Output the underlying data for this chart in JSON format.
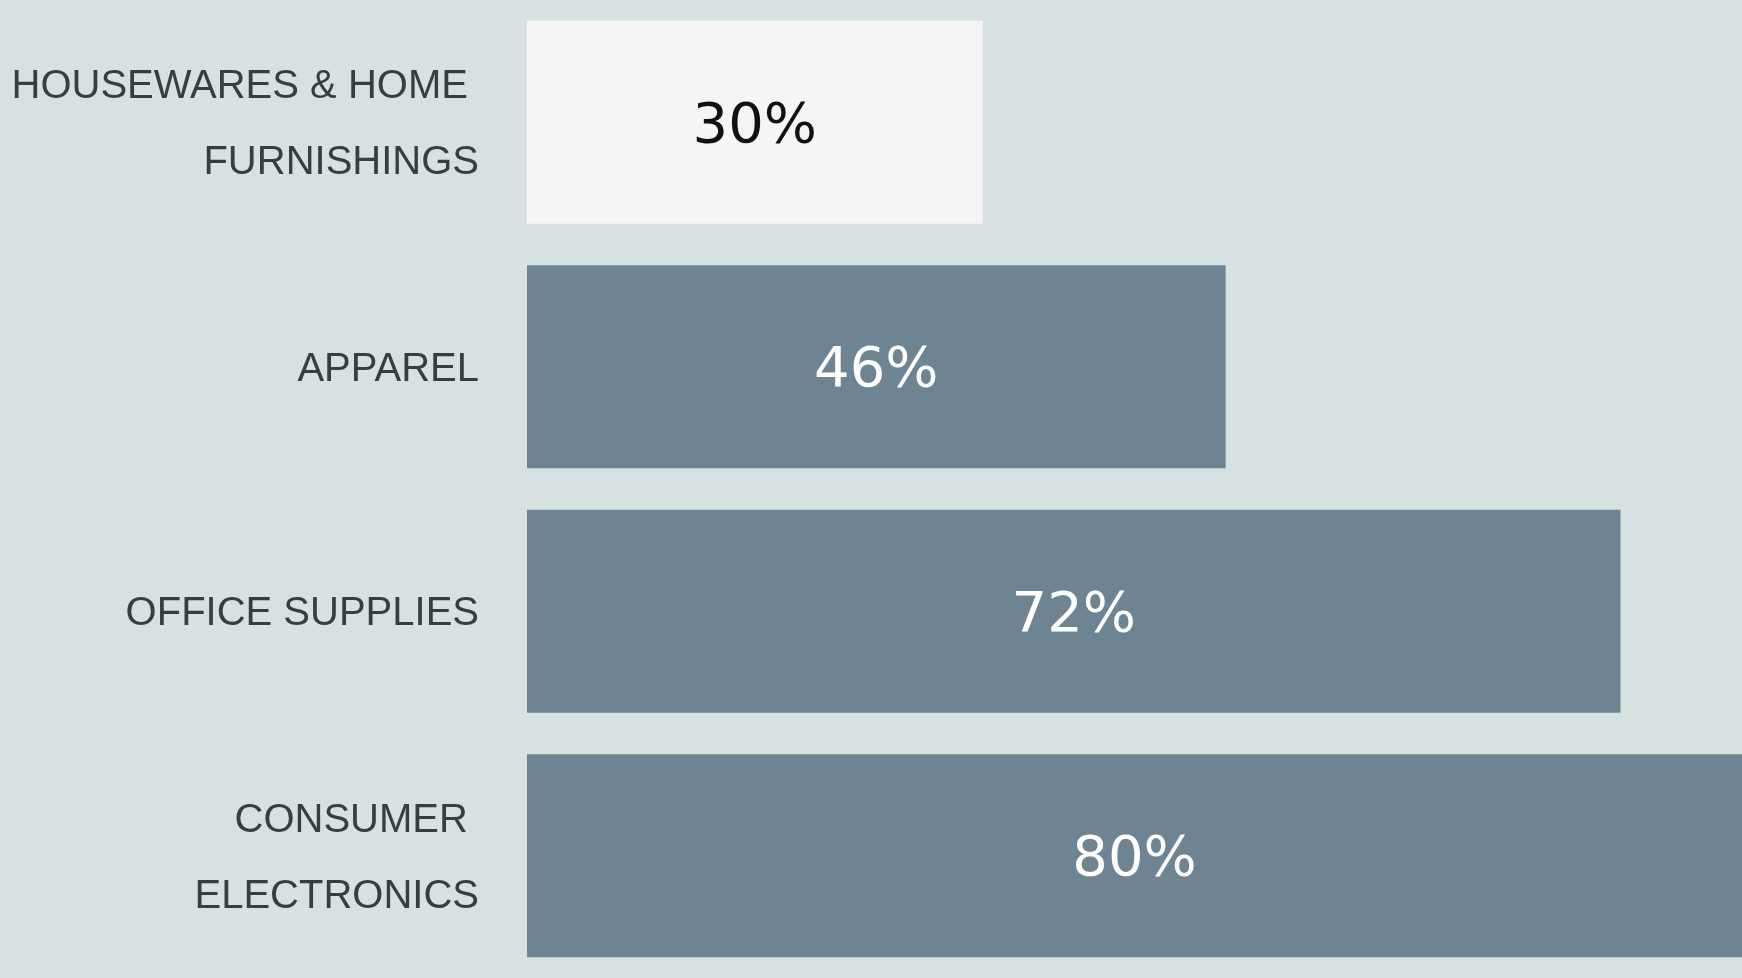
{
  "chart_data": {
    "type": "bar",
    "orientation": "horizontal",
    "categories": [
      "HOUSEWARES & HOME FURNISHINGS",
      "APPAREL",
      "OFFICE SUPPLIES",
      "CONSUMER ELECTRONICS"
    ],
    "values": [
      30,
      46,
      72,
      80
    ],
    "value_labels": [
      "30%",
      "46%",
      "72%",
      "80%"
    ],
    "colors": [
      "#f5f5f5",
      "#6e8492",
      "#6e8492",
      "#6e8492"
    ]
  }
}
